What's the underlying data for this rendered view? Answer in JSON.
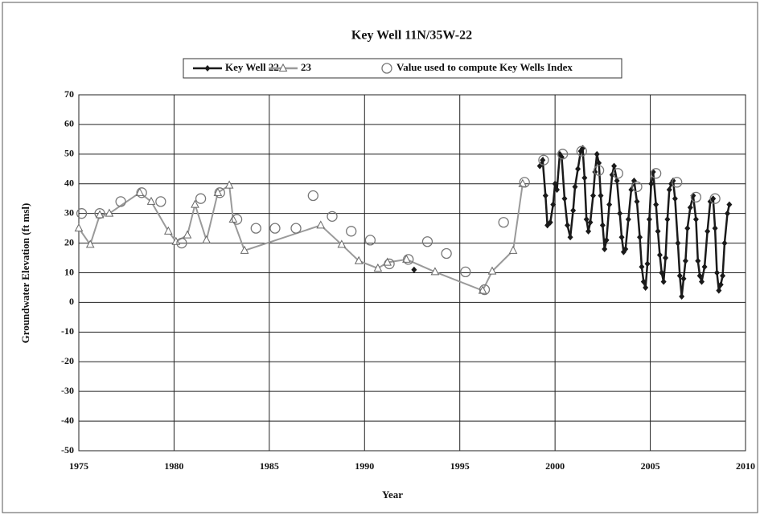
{
  "chart_data": {
    "type": "line",
    "title": "Key Well 11N/35W-22",
    "xlabel": "Year",
    "ylabel": "Groundwater Elevation (ft msl)",
    "xlim": [
      1975,
      2010
    ],
    "xticks": [
      1975,
      1980,
      1985,
      1990,
      1995,
      2000,
      2005,
      2010
    ],
    "ylim": [
      -50,
      70
    ],
    "yticks": [
      -50,
      -40,
      -30,
      -20,
      -10,
      0,
      10,
      20,
      30,
      40,
      50,
      60,
      70
    ],
    "grid": true,
    "legend": "top",
    "series": [
      {
        "name": "Key Well 22",
        "color": "#1a1a1a",
        "marker": "diamond",
        "x": [
          1992.6,
          1999.0,
          1999.2,
          1999.35,
          1999.5,
          1999.6,
          1999.75,
          1999.9,
          2000.0,
          2000.1,
          2000.25,
          2000.35,
          2000.5,
          2000.65,
          2000.8,
          2000.95,
          2001.05,
          2001.2,
          2001.35,
          2001.45,
          2001.55,
          2001.65,
          2001.75,
          2001.85,
          2002.0,
          2002.1,
          2002.2,
          2002.3,
          2002.4,
          2002.5,
          2002.6,
          2002.7,
          2002.85,
          2003.0,
          2003.1,
          2003.25,
          2003.4,
          2003.5,
          2003.6,
          2003.7,
          2003.85,
          2004.0,
          2004.15,
          2004.3,
          2004.45,
          2004.55,
          2004.65,
          2004.75,
          2004.85,
          2004.95,
          2005.05,
          2005.15,
          2005.3,
          2005.4,
          2005.5,
          2005.6,
          2005.7,
          2005.8,
          2005.9,
          2006.0,
          2006.1,
          2006.2,
          2006.3,
          2006.45,
          2006.55,
          2006.65,
          2006.75,
          2006.85,
          2006.95,
          2007.1,
          2007.25,
          2007.4,
          2007.5,
          2007.6,
          2007.7,
          2007.85,
          2008.0,
          2008.15,
          2008.3,
          2008.4,
          2008.5,
          2008.6,
          2008.7,
          2008.8,
          2008.9,
          2009.05,
          2009.15
        ],
        "values": [
          11,
          null,
          46,
          48,
          36,
          26,
          27,
          33,
          40,
          38,
          50,
          49,
          35,
          26,
          22,
          31,
          39,
          45,
          51,
          52,
          42,
          28,
          24,
          27,
          36,
          44,
          50,
          47,
          36,
          26,
          18,
          21,
          33,
          43,
          46,
          41,
          30,
          22,
          17,
          18,
          28,
          38,
          41,
          34,
          22,
          12,
          7,
          5,
          13,
          28,
          40,
          44,
          33,
          24,
          16,
          10,
          7,
          15,
          28,
          38,
          40,
          41,
          35,
          20,
          9,
          2,
          8,
          14,
          25,
          32,
          36,
          28,
          14,
          9,
          7,
          12,
          24,
          34,
          35,
          25,
          10,
          4,
          6,
          9,
          20,
          30,
          33
        ]
      },
      {
        "name": "23",
        "color": "#9a9a9a",
        "marker": "triangle",
        "x": [
          1975.0,
          1975.6,
          1976.1,
          1976.6,
          1978.2,
          1978.8,
          1979.7,
          1980.1,
          1980.7,
          1981.1,
          1981.7,
          1982.3,
          1982.9,
          1983.1,
          1983.7,
          1987.7,
          1988.8,
          1989.7,
          1990.7,
          1991.2,
          1992.2,
          1993.7,
          1996.2,
          1996.7,
          1997.8,
          1998.3
        ],
        "values": [
          25,
          19.5,
          29.5,
          30,
          37,
          34,
          24,
          20.5,
          22.7,
          33,
          21,
          37,
          39.5,
          28,
          17.5,
          26,
          19.5,
          14,
          11.5,
          13.5,
          14.5,
          10.3,
          4,
          10.5,
          17.5,
          40
        ]
      },
      {
        "name": "Value used to compute Key Wells Index",
        "color": "#777777",
        "marker": "circle",
        "x": [
          1975.15,
          1976.1,
          1977.2,
          1978.3,
          1979.3,
          1980.4,
          1981.4,
          1982.4,
          1983.3,
          1984.3,
          1985.3,
          1986.4,
          1987.3,
          1988.3,
          1989.3,
          1990.3,
          1991.3,
          1992.3,
          1993.3,
          1994.3,
          1995.3,
          1996.3,
          1997.3,
          1998.4,
          1999.4,
          2000.4,
          2001.4,
          2002.3,
          2003.3,
          2004.3,
          2005.3,
          2006.4,
          2007.4,
          2008.4
        ],
        "values": [
          30,
          30,
          34,
          37,
          34,
          20,
          35,
          37,
          28,
          25,
          25,
          25,
          36,
          29,
          24,
          21,
          13,
          14.5,
          20.5,
          16.5,
          10.3,
          4.3,
          27,
          40.5,
          48,
          50,
          51,
          44.5,
          43.5,
          39,
          43.5,
          40.5,
          35.5,
          35
        ]
      }
    ]
  }
}
